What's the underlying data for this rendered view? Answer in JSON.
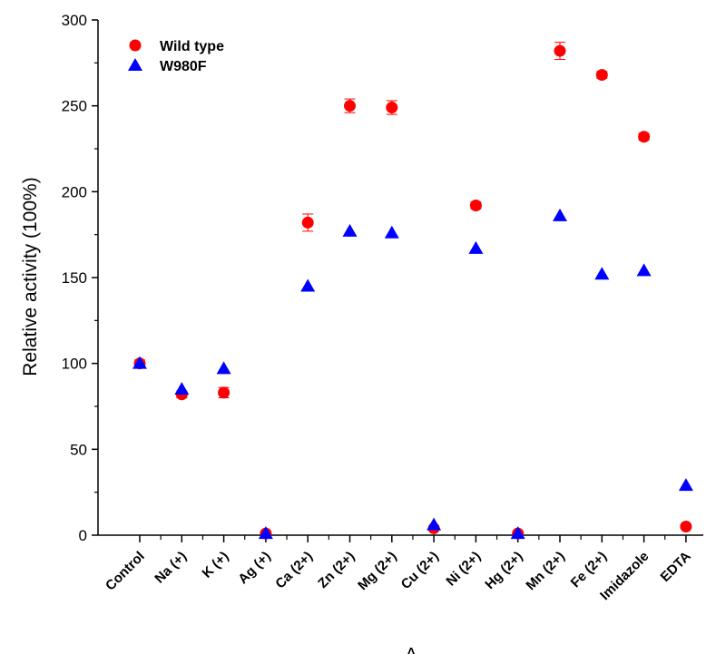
{
  "chart_data": {
    "type": "scatter",
    "xlabel": "A",
    "ylabel": "Relative activity (100%)",
    "ylim": [
      0,
      300
    ],
    "yticks": [
      0,
      50,
      100,
      150,
      200,
      250,
      300
    ],
    "grid": false,
    "legend_position": "top-left",
    "categories": [
      "Control",
      "Na (+)",
      "K (+)",
      "Ag (+)",
      "Ca (2+)",
      "Zn (2+)",
      "Mg (2+)",
      "Cu (2+)",
      "Ni (2+)",
      "Hg (2+)",
      "Mn (2+)",
      "Fe (2+)",
      "Imidazole",
      "EDTA"
    ],
    "series": [
      {
        "name": "Wild type",
        "marker": "circle",
        "color": "#ff0000",
        "values": [
          100,
          82,
          83,
          1,
          182,
          250,
          249,
          4,
          192,
          1,
          282,
          268,
          232,
          5
        ],
        "errors": [
          2,
          2,
          3,
          0.5,
          5,
          4,
          4,
          1,
          2,
          0.5,
          5,
          2,
          2,
          1
        ]
      },
      {
        "name": "W980F",
        "marker": "triangle",
        "color": "#0000ff",
        "values": [
          100,
          85,
          97,
          1,
          145,
          177,
          176,
          6,
          167,
          1,
          186,
          152,
          154,
          29
        ],
        "errors": []
      }
    ]
  }
}
